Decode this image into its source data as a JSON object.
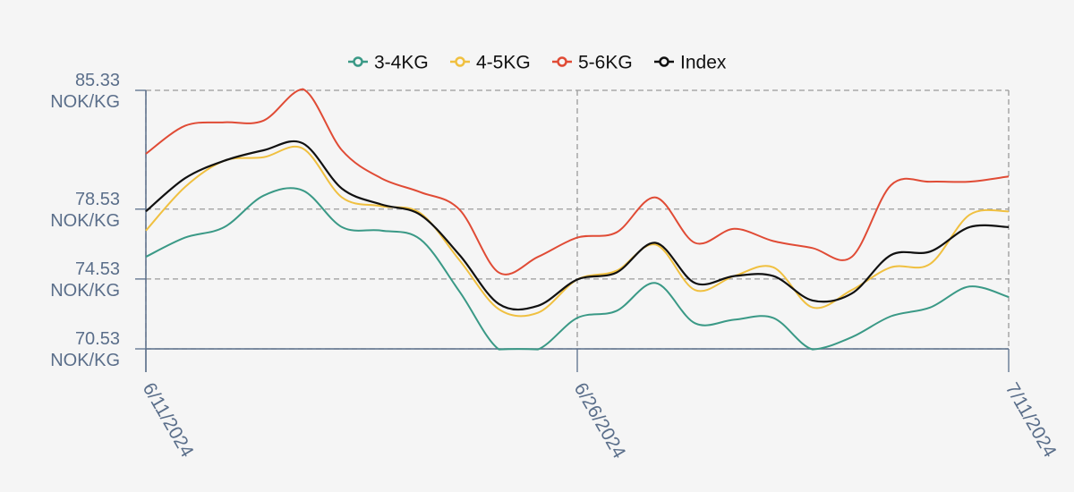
{
  "chart_data": {
    "type": "line",
    "x": [
      "6/11/2024",
      "6/12/2024",
      "6/13/2024",
      "6/14/2024",
      "6/17/2024",
      "6/18/2024",
      "6/19/2024",
      "6/20/2024",
      "6/21/2024",
      "6/24/2024",
      "6/25/2024",
      "6/26/2024",
      "6/27/2024",
      "6/28/2024",
      "7/1/2024",
      "7/2/2024",
      "7/3/2024",
      "7/4/2024",
      "7/5/2024",
      "7/8/2024",
      "7/9/2024",
      "7/10/2024",
      "7/11/2024"
    ],
    "series": [
      {
        "name": "3-4KG",
        "color": "#3a9986",
        "values": [
          75.8,
          76.9,
          77.5,
          79.3,
          79.6,
          77.5,
          77.3,
          76.8,
          73.8,
          70.5,
          70.5,
          72.3,
          72.7,
          74.3,
          72.0,
          72.2,
          72.3,
          70.5,
          71.2,
          72.4,
          72.9,
          74.1,
          73.5
        ]
      },
      {
        "name": "4-5KG",
        "color": "#f0c040",
        "values": [
          77.3,
          79.8,
          81.3,
          81.5,
          82.0,
          79.2,
          78.7,
          78.3,
          75.6,
          72.8,
          72.6,
          74.5,
          75.0,
          76.5,
          73.9,
          74.7,
          75.2,
          72.9,
          73.9,
          75.2,
          75.4,
          78.2,
          78.4
        ]
      },
      {
        "name": "5-6KG",
        "color": "#e04b35",
        "values": [
          81.7,
          83.3,
          83.5,
          83.6,
          85.4,
          81.9,
          80.3,
          79.5,
          78.5,
          74.9,
          75.8,
          76.9,
          77.2,
          79.2,
          76.6,
          77.4,
          76.7,
          76.3,
          75.8,
          79.9,
          80.1,
          80.1,
          80.4
        ]
      },
      {
        "name": "Index",
        "color": "#111111",
        "values": [
          78.4,
          80.3,
          81.3,
          81.9,
          82.3,
          79.7,
          78.8,
          78.2,
          75.9,
          73.1,
          73.0,
          74.5,
          74.9,
          76.6,
          74.3,
          74.7,
          74.7,
          73.3,
          73.7,
          75.9,
          76.1,
          77.5,
          77.5
        ]
      }
    ],
    "ylim": [
      70.53,
      85.33
    ],
    "yticks": [
      "85.33",
      "78.53",
      "74.53",
      "70.53"
    ],
    "yunit": "NOK/KG",
    "xticks": [
      "6/11/2024",
      "6/26/2024",
      "7/11/2024"
    ],
    "grid": true,
    "legend": "top-center"
  }
}
